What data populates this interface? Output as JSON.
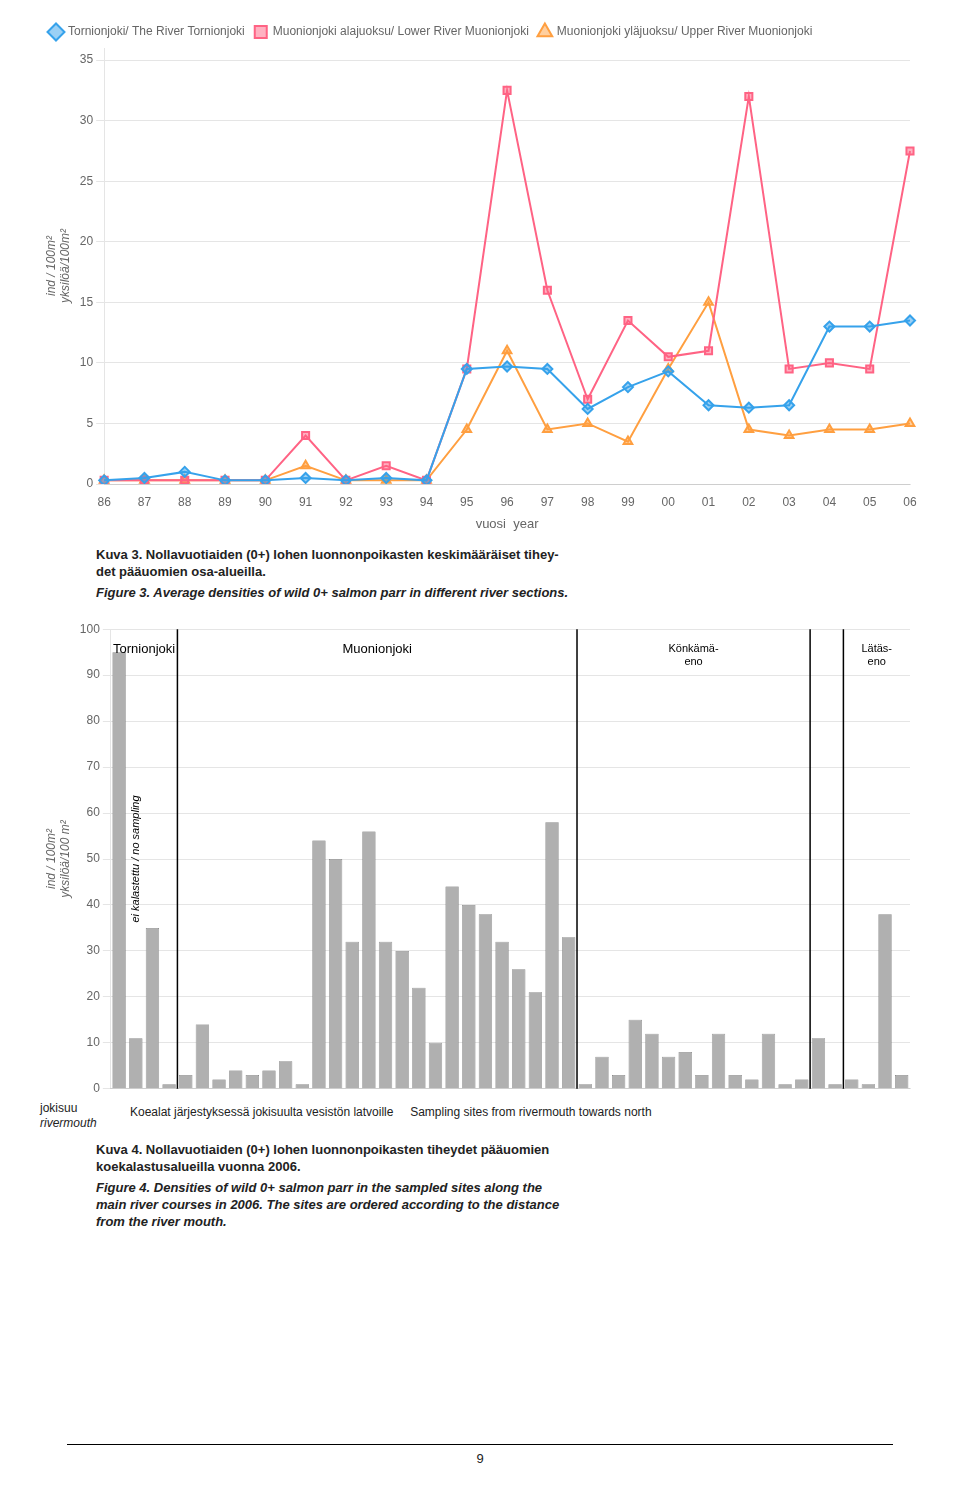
{
  "chart_data": [
    {
      "type": "line",
      "categories": [
        "86",
        "87",
        "88",
        "89",
        "90",
        "91",
        "92",
        "93",
        "94",
        "95",
        "96",
        "97",
        "98",
        "99",
        "00",
        "01",
        "02",
        "03",
        "04",
        "05",
        "06"
      ],
      "series": [
        {
          "name": "Tornionjoki/ The River Tornionjoki",
          "marker": "diamond",
          "values": [
            0.3,
            0.5,
            1.0,
            0.3,
            0.3,
            0.5,
            0.3,
            0.5,
            0.3,
            9.5,
            9.7,
            9.5,
            6.2,
            8.0,
            9.3,
            6.5,
            6.3,
            6.5,
            13.0,
            13.0,
            13.5
          ]
        },
        {
          "name": "Muonionjoki alajuoksu/ Lower River Muonionjoki",
          "marker": "square",
          "values": [
            0.3,
            0.3,
            0.3,
            0.3,
            0.3,
            4.0,
            0.3,
            1.5,
            0.3,
            9.5,
            32.5,
            16.0,
            7.0,
            13.5,
            10.5,
            11.0,
            32.0,
            9.5,
            10.0,
            9.5,
            27.5
          ]
        },
        {
          "name": "Muonionjoki yläjuoksu/ Upper River Muonionjoki",
          "marker": "triangle",
          "values": [
            0.3,
            0.3,
            0.3,
            0.3,
            0.3,
            1.5,
            0.3,
            0.3,
            0.3,
            4.5,
            11.0,
            4.5,
            5.0,
            3.5,
            9.5,
            15.0,
            4.5,
            4.0,
            4.5,
            4.5,
            5.0
          ]
        }
      ],
      "x_label": "vuosi  year",
      "y_label": [
        "ind / 100m²",
        "yksilöä/100m²"
      ],
      "ylim": [
        0,
        36
      ],
      "yticks": [
        0,
        5,
        10,
        15,
        20,
        25,
        30,
        35
      ],
      "grid": true,
      "legend": "upper left",
      "caption": [
        "Kuva 3. Nollavuotiaiden (0+) lohen luonnonpoikasten keskimääräiset tihey-",
        "det pääuomien osa-alueilla."
      ],
      "caption_en": [
        "Figure 3. Average densities of wild 0+ salmon parr in different river sections."
      ]
    },
    {
      "type": "bar",
      "categories": [
        null,
        null,
        null,
        null,
        null,
        null,
        null,
        null,
        null,
        null,
        null,
        null,
        null,
        null,
        null,
        null,
        null,
        null,
        null,
        null,
        null,
        null,
        null,
        null,
        null,
        null,
        null,
        null,
        null,
        null,
        null,
        null,
        null,
        null,
        null,
        null,
        null,
        null,
        null,
        null,
        null,
        null,
        null,
        null,
        null,
        null,
        null,
        null
      ],
      "values": [
        95,
        11,
        35,
        1,
        3,
        14,
        2,
        4,
        3,
        4,
        6,
        1,
        54,
        50,
        32,
        56,
        32,
        30,
        22,
        10,
        44,
        40,
        38,
        32,
        26,
        21,
        58,
        33,
        1,
        7,
        3,
        15,
        12,
        7,
        8,
        3,
        12,
        3,
        2,
        12,
        1,
        2,
        11,
        1,
        2,
        1,
        38,
        3
      ],
      "color": "#b0b0b0",
      "ylim": [
        0,
        100
      ],
      "yticks": [
        0,
        10,
        20,
        30,
        40,
        50,
        60,
        70,
        80,
        90,
        100
      ],
      "grid": true,
      "tick_labels": "y",
      "y_label": [
        "ind / 100m²",
        "yksilöä/100 m²"
      ],
      "x_start_label": [
        "jokisuu",
        "rivermouth"
      ],
      "x_label": "Koealat järjestyksessä jokisuulta vesistön latvoille     Sampling sites from rivermouth towards north",
      "section_dividers": [
        3.5,
        27.5,
        41.5,
        43.5
      ],
      "annotations": [
        {
          "text": "Tornionjoki",
          "x": 1.5,
          "y": 97
        },
        {
          "text": "Muonionjoki",
          "x": 15.5,
          "y": 97
        },
        {
          "text": "Könkämä-\neno",
          "x": 34.5,
          "y": 97
        },
        {
          "text": "Lätäs-\neno",
          "x": 45.5,
          "y": 97
        },
        {
          "text": "ei kalastettu / no sampling",
          "x": 1.0,
          "y": 50,
          "vertical": true
        }
      ],
      "caption": [
        "Kuva 4. Nollavuotiaiden (0+) lohen luonnonpoikasten tiheydet pääuomien",
        "koekalastusalueilla vuonna 2006."
      ],
      "caption_en": [
        "Figure 4. Densities of wild 0+ salmon parr in the sampled sites along the",
        "main river courses in 2006. The sites are ordered according to the distance",
        "from the river mouth."
      ]
    }
  ],
  "page_number": "9"
}
